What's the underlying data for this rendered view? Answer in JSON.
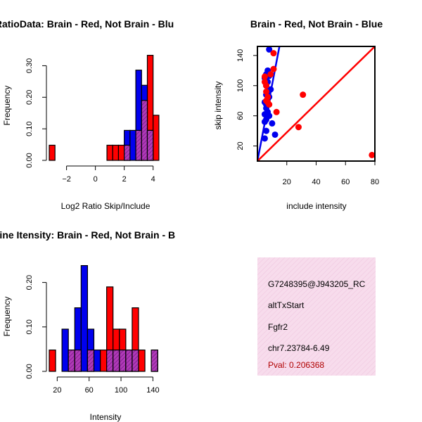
{
  "colors": {
    "red": "#ff0000",
    "blue": "#0000ee",
    "purple": "#9b1fa3",
    "info_bg": "#f6d8ea",
    "pval": "#b00000"
  },
  "chart_data": [
    {
      "type": "bar",
      "title": "RatioData: Brain - Red, Not Brain - Blu",
      "xlabel": "Log2 Ratio Skip/Include",
      "ylabel": "Frequency",
      "xlim": [
        -3.2,
        4.6
      ],
      "ylim": [
        0,
        0.35
      ],
      "xticks": [
        -2,
        0,
        2,
        4
      ],
      "yticks": [
        0.0,
        0.1,
        0.2,
        0.3
      ],
      "ytick_labels": [
        "0.00",
        "0.10",
        "0.20",
        "0.30"
      ],
      "bin_width": 0.4,
      "series": [
        {
          "name": "Not Brain",
          "color": "blue",
          "bins": [
            [
              2.0,
              2.4,
              0.095
            ],
            [
              2.4,
              2.8,
              0.095
            ],
            [
              2.8,
              3.2,
              0.286
            ],
            [
              3.2,
              3.6,
              0.238
            ],
            [
              3.6,
              4.0,
              0.095
            ]
          ]
        },
        {
          "name": "Brain",
          "color": "red",
          "bins": [
            [
              -3.2,
              -2.8,
              0.048
            ],
            [
              0.8,
              1.2,
              0.048
            ],
            [
              1.2,
              1.6,
              0.048
            ],
            [
              1.6,
              2.0,
              0.048
            ],
            [
              2.0,
              2.4,
              0.048
            ],
            [
              2.8,
              3.2,
              0.095
            ],
            [
              3.2,
              3.6,
              0.19
            ],
            [
              3.6,
              4.0,
              0.333
            ],
            [
              4.0,
              4.4,
              0.143
            ]
          ]
        }
      ]
    },
    {
      "type": "scatter",
      "title": "Brain - Red, Not Brain - Blue",
      "xlabel": "include intensity",
      "ylabel": "skip intensity",
      "xlim": [
        0,
        80
      ],
      "ylim": [
        0,
        152
      ],
      "xticks": [
        20,
        40,
        60,
        80
      ],
      "yticks": [
        20,
        60,
        100,
        140
      ],
      "series": [
        {
          "name": "Not Brain",
          "color": "blue",
          "points": [
            [
              5,
              30
            ],
            [
              6,
              40
            ],
            [
              5,
              52
            ],
            [
              6,
              55
            ],
            [
              5,
              62
            ],
            [
              6,
              70
            ],
            [
              7,
              65
            ],
            [
              8,
              60
            ],
            [
              6,
              75
            ],
            [
              5,
              78
            ],
            [
              7,
              82
            ],
            [
              8,
              85
            ],
            [
              6,
              88
            ],
            [
              7,
              92
            ],
            [
              9,
              95
            ],
            [
              6,
              100
            ],
            [
              7,
              105
            ],
            [
              5,
              110
            ],
            [
              6,
              115
            ],
            [
              7,
              120
            ],
            [
              8,
              113
            ],
            [
              10,
              50
            ],
            [
              12,
              35
            ],
            [
              8,
              148
            ]
          ],
          "fit_line": [
            [
              0,
              0
            ],
            [
              15,
              152
            ]
          ]
        },
        {
          "name": "Brain",
          "color": "red",
          "points": [
            [
              5,
              105
            ],
            [
              6,
              100
            ],
            [
              6,
              92
            ],
            [
              7,
              85
            ],
            [
              6,
              80
            ],
            [
              7,
              78
            ],
            [
              8,
              75
            ],
            [
              9,
              115
            ],
            [
              11,
              122
            ],
            [
              11,
              143
            ],
            [
              13,
              65
            ],
            [
              28,
              45
            ],
            [
              31,
              88
            ],
            [
              78,
              8
            ],
            [
              5,
              112
            ]
          ],
          "fit_line": [
            [
              0,
              0
            ],
            [
              80,
              152
            ]
          ]
        }
      ]
    },
    {
      "type": "bar",
      "title": "Line Itensity: Brain - Red, Not Brain - B",
      "xlabel": "Intensity",
      "ylabel": "Frequency",
      "xlim": [
        10,
        152
      ],
      "ylim": [
        0,
        0.25
      ],
      "xticks": [
        20,
        60,
        100,
        140
      ],
      "yticks": [
        0.0,
        0.1,
        0.2
      ],
      "ytick_labels": [
        "0.00",
        "0.10",
        "0.20"
      ],
      "bin_width": 8,
      "series": [
        {
          "name": "Not Brain",
          "color": "blue",
          "bins": [
            [
              26,
              34,
              0.095
            ],
            [
              34,
              42,
              0.048
            ],
            [
              42,
              50,
              0.143
            ],
            [
              50,
              58,
              0.238
            ],
            [
              58,
              66,
              0.095
            ],
            [
              66,
              74,
              0.048
            ],
            [
              82,
              90,
              0.048
            ],
            [
              90,
              98,
              0.048
            ],
            [
              98,
              106,
              0.048
            ],
            [
              106,
              114,
              0.048
            ],
            [
              114,
              122,
              0.048
            ],
            [
              138,
              146,
              0.048
            ]
          ]
        },
        {
          "name": "Brain",
          "color": "red",
          "bins": [
            [
              10,
              18,
              0.048
            ],
            [
              34,
              42,
              0.048
            ],
            [
              42,
              50,
              0.048
            ],
            [
              58,
              66,
              0.048
            ],
            [
              74,
              82,
              0.048
            ],
            [
              82,
              90,
              0.19
            ],
            [
              90,
              98,
              0.095
            ],
            [
              98,
              106,
              0.095
            ],
            [
              106,
              114,
              0.048
            ],
            [
              114,
              122,
              0.143
            ],
            [
              122,
              130,
              0.048
            ],
            [
              138,
              146,
              0.048
            ]
          ]
        }
      ]
    }
  ],
  "info": {
    "id": "G7248395@J943205_RC",
    "event": "altTxStart",
    "gene": "Fgfr2",
    "location": "chr7.23784-6.49",
    "pval": "Pval: 0.206368"
  }
}
